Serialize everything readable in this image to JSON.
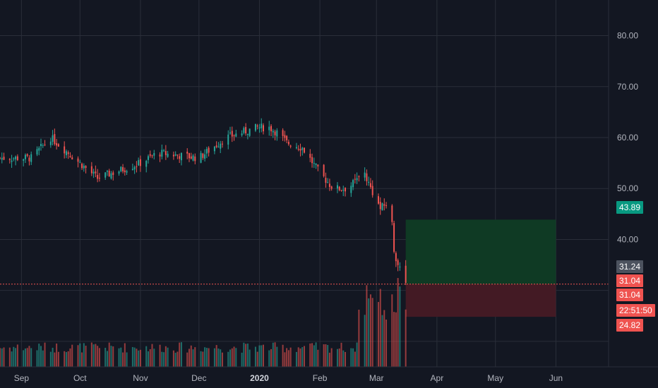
{
  "chart_data": {
    "type": "candlestick",
    "price_ticks": [
      "80.00",
      "70.00",
      "60.00",
      "50.00",
      "40.00"
    ],
    "time_ticks": [
      "Sep",
      "Oct",
      "Nov",
      "Dec",
      "2020",
      "Feb",
      "Mar",
      "Apr",
      "May",
      "Jun"
    ],
    "ylim": [
      15,
      87
    ],
    "x_domain": [
      "2019-08-21",
      "2020-06-28"
    ],
    "series": {
      "base_close": [
        [
          "2019-08-21",
          56
        ],
        [
          "2019-09-06",
          56
        ],
        [
          "2019-09-16",
          60
        ],
        [
          "2019-10-01",
          55
        ],
        [
          "2019-10-10",
          52
        ],
        [
          "2019-11-01",
          55
        ],
        [
          "2019-11-10",
          57
        ],
        [
          "2019-12-01",
          56
        ],
        [
          "2019-12-15",
          60
        ],
        [
          "2019-12-31",
          62
        ],
        [
          "2020-01-06",
          62
        ],
        [
          "2020-01-10",
          61
        ],
        [
          "2020-01-15",
          59
        ],
        [
          "2020-01-23",
          58
        ],
        [
          "2020-02-01",
          53
        ],
        [
          "2020-02-08",
          50
        ],
        [
          "2020-02-15",
          50
        ],
        [
          "2020-02-21",
          52
        ],
        [
          "2020-02-24",
          53
        ],
        [
          "2020-02-26",
          51
        ],
        [
          "2020-03-03",
          46
        ],
        [
          "2020-03-06",
          47
        ],
        [
          "2020-03-09",
          43
        ],
        [
          "2020-03-10",
          38
        ],
        [
          "2020-03-12",
          35
        ],
        [
          "2020-03-15",
          32
        ],
        [
          "2020-03-16",
          31.2
        ]
      ]
    },
    "last_price": "31.24",
    "timer": "22:51:50",
    "position": {
      "type": "long",
      "entry": 31.24,
      "take_profit": 43.89,
      "stop_loss": 24.82,
      "start_date": "2020-03-16",
      "end_date": "2020-06-01",
      "labels": {
        "target": "43.89",
        "entry": "31.24",
        "stop": "24.82",
        "entry_upper": "31.04",
        "entry_lower": "31.04"
      }
    },
    "colors": {
      "up": "#26a69a",
      "down": "#ef5350",
      "background": "#131722",
      "grid": "#2a2e39",
      "profit_zone": "#0f3a24",
      "loss_zone": "#431a24",
      "target_badge": "#089981",
      "neutral_badge": "#4c525e"
    }
  }
}
